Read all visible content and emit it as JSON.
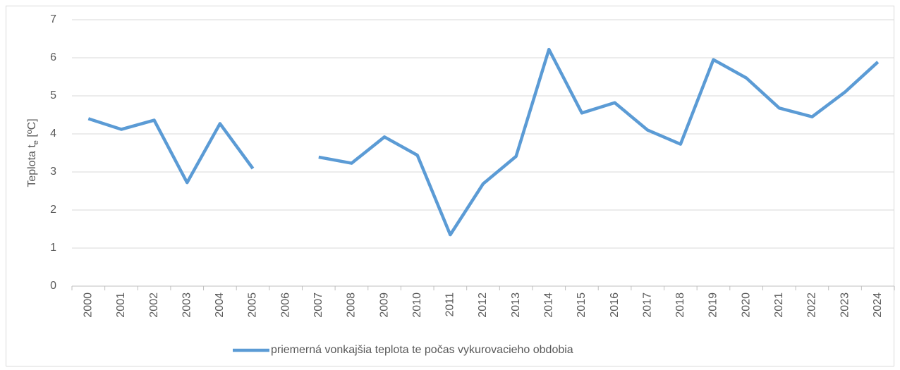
{
  "chart_data": {
    "type": "line",
    "y_label": {
      "text": "Teplota t",
      "subscript": "e",
      "unit": " [ºC]"
    },
    "categories": [
      "2000",
      "2001",
      "2002",
      "2003",
      "2004",
      "2005",
      "2006",
      "2007",
      "2008",
      "2009",
      "2010",
      "2011",
      "2012",
      "2013",
      "2014",
      "2015",
      "2016",
      "2017",
      "2018",
      "2019",
      "2020",
      "2021",
      "2022",
      "2023",
      "2024"
    ],
    "series": [
      {
        "name": "priemerná vonkajšia teplota te počas vykurovacieho obdobia",
        "color": "#5b9bd5",
        "values": [
          4.4,
          4.12,
          4.36,
          2.72,
          4.27,
          3.09,
          null,
          3.39,
          3.23,
          3.92,
          3.44,
          1.35,
          2.69,
          3.41,
          6.22,
          4.55,
          4.82,
          4.1,
          3.73,
          5.95,
          5.47,
          4.68,
          4.45,
          5.1,
          5.89
        ]
      }
    ],
    "ylim": [
      0,
      7
    ],
    "yticks": [
      0,
      1,
      2,
      3,
      4,
      5,
      6,
      7
    ],
    "grid": true,
    "legend": "bottom"
  }
}
